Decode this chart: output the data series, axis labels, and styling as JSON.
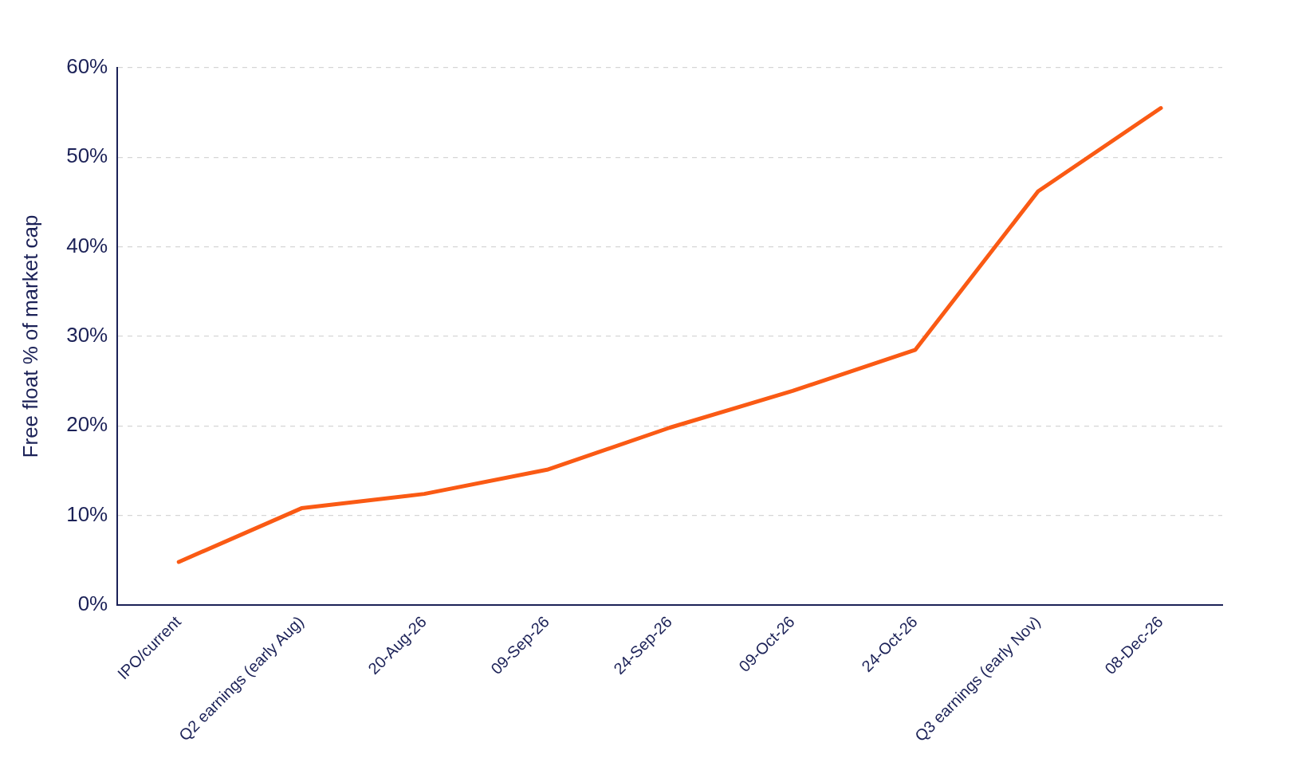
{
  "chart_data": {
    "type": "line",
    "ylabel": "Free float % of market cap",
    "categories": [
      "IPO/current",
      "Q2 earnings (early Aug)",
      "20-Aug-26",
      "09-Sep-26",
      "24-Sep-26",
      "09-Oct-26",
      "24-Oct-26",
      "Q3 earnings (early Nov)",
      "08-Dec-26"
    ],
    "series": [
      {
        "color": "#fa5a14",
        "values": [
          4.8,
          10.8,
          12.4,
          15.1,
          19.8,
          23.9,
          28.5,
          46.2,
          55.5
        ]
      }
    ],
    "ylim": [
      0,
      60
    ],
    "yticks": [
      {
        "value": 0,
        "label": "0%"
      },
      {
        "value": 10,
        "label": "10%"
      },
      {
        "value": 20,
        "label": "20%"
      },
      {
        "value": 30,
        "label": "30%"
      },
      {
        "value": 40,
        "label": "40%"
      },
      {
        "value": 50,
        "label": "50%"
      },
      {
        "value": 60,
        "label": "60%"
      }
    ],
    "grid": "y",
    "legend": false,
    "marker": "none",
    "line_style": "solid"
  }
}
